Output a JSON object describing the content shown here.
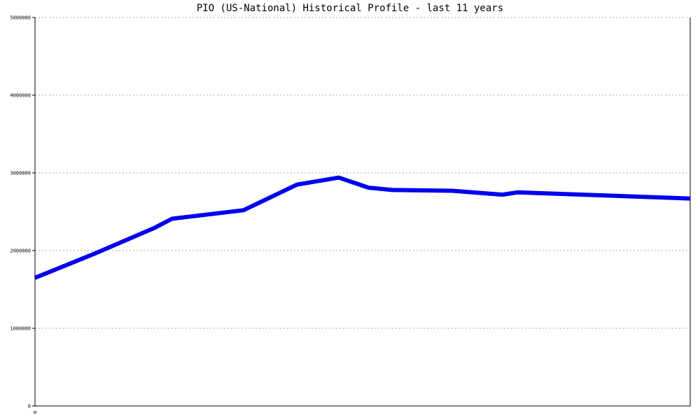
{
  "chart_data": {
    "type": "line",
    "title": "PIO (US-National) Historical Profile - last 11 years",
    "xlabel": "",
    "ylabel": "",
    "x_tick_labels": [
      "0"
    ],
    "y_ticks": [
      0,
      1000000,
      2000000,
      3000000,
      4000000,
      5000000
    ],
    "y_tick_labels": [
      "0",
      "1000000",
      "2000000",
      "3000000",
      "4000000",
      "5000000"
    ],
    "ylim": [
      0,
      5000000
    ],
    "xlim": [
      0,
      11
    ],
    "grid": true,
    "series": [
      {
        "color": "#0000ee",
        "x": [
          0,
          1,
          2,
          2.3,
          3.5,
          4.4,
          5.1,
          5.6,
          6,
          7,
          7.85,
          8.1,
          11
        ],
        "values": [
          1650000,
          1960000,
          2290000,
          2410000,
          2520000,
          2850000,
          2940000,
          2810000,
          2780000,
          2770000,
          2720000,
          2750000,
          2670000
        ]
      }
    ]
  }
}
